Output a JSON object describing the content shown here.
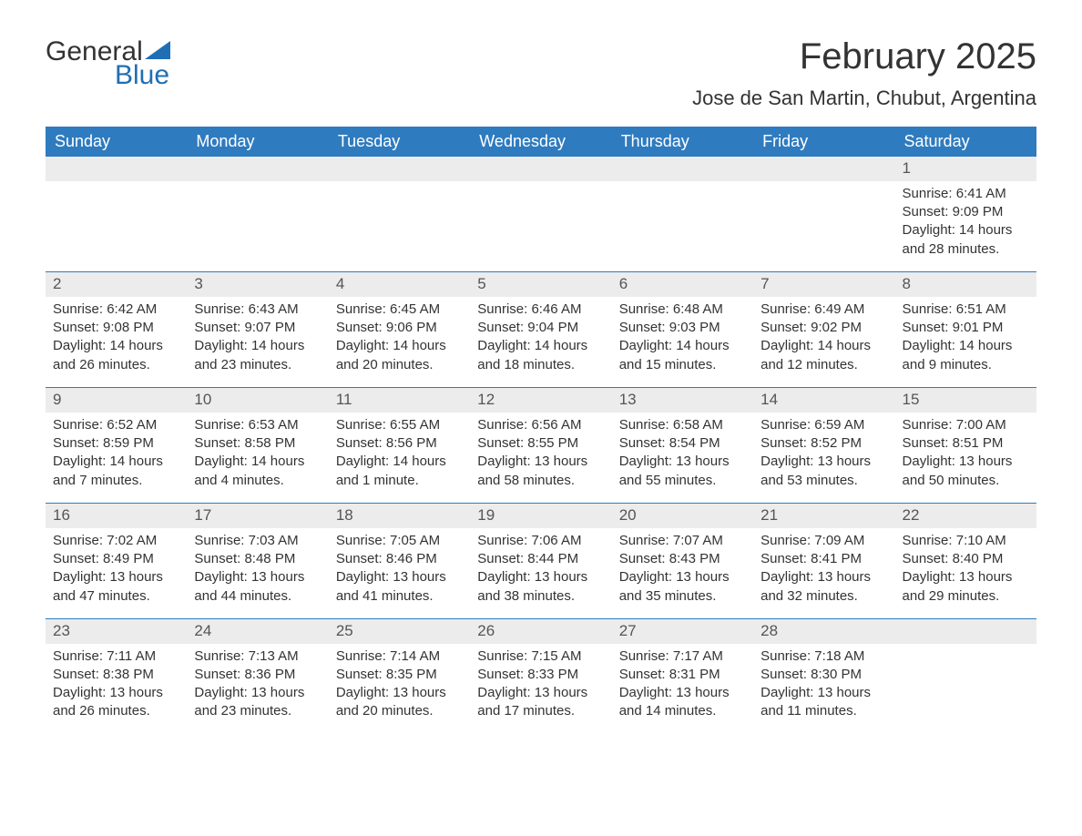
{
  "logo": {
    "word1": "General",
    "word2": "Blue",
    "accent_color": "#1f6fb5"
  },
  "header": {
    "month_title": "February 2025",
    "location": "Jose de San Martin, Chubut, Argentina"
  },
  "calendar": {
    "header_bg": "#2f7bbf",
    "header_fg": "#ffffff",
    "daynum_bg": "#ececec",
    "separator_color": "#2f7bbf",
    "text_color": "#333333",
    "columns": [
      "Sunday",
      "Monday",
      "Tuesday",
      "Wednesday",
      "Thursday",
      "Friday",
      "Saturday"
    ],
    "weeks": [
      [
        {
          "empty": true
        },
        {
          "empty": true
        },
        {
          "empty": true
        },
        {
          "empty": true
        },
        {
          "empty": true
        },
        {
          "empty": true
        },
        {
          "day": "1",
          "sunrise": "Sunrise: 6:41 AM",
          "sunset": "Sunset: 9:09 PM",
          "daylight": "Daylight: 14 hours and 28 minutes."
        }
      ],
      [
        {
          "day": "2",
          "sunrise": "Sunrise: 6:42 AM",
          "sunset": "Sunset: 9:08 PM",
          "daylight": "Daylight: 14 hours and 26 minutes."
        },
        {
          "day": "3",
          "sunrise": "Sunrise: 6:43 AM",
          "sunset": "Sunset: 9:07 PM",
          "daylight": "Daylight: 14 hours and 23 minutes."
        },
        {
          "day": "4",
          "sunrise": "Sunrise: 6:45 AM",
          "sunset": "Sunset: 9:06 PM",
          "daylight": "Daylight: 14 hours and 20 minutes."
        },
        {
          "day": "5",
          "sunrise": "Sunrise: 6:46 AM",
          "sunset": "Sunset: 9:04 PM",
          "daylight": "Daylight: 14 hours and 18 minutes."
        },
        {
          "day": "6",
          "sunrise": "Sunrise: 6:48 AM",
          "sunset": "Sunset: 9:03 PM",
          "daylight": "Daylight: 14 hours and 15 minutes."
        },
        {
          "day": "7",
          "sunrise": "Sunrise: 6:49 AM",
          "sunset": "Sunset: 9:02 PM",
          "daylight": "Daylight: 14 hours and 12 minutes."
        },
        {
          "day": "8",
          "sunrise": "Sunrise: 6:51 AM",
          "sunset": "Sunset: 9:01 PM",
          "daylight": "Daylight: 14 hours and 9 minutes."
        }
      ],
      [
        {
          "day": "9",
          "sunrise": "Sunrise: 6:52 AM",
          "sunset": "Sunset: 8:59 PM",
          "daylight": "Daylight: 14 hours and 7 minutes."
        },
        {
          "day": "10",
          "sunrise": "Sunrise: 6:53 AM",
          "sunset": "Sunset: 8:58 PM",
          "daylight": "Daylight: 14 hours and 4 minutes."
        },
        {
          "day": "11",
          "sunrise": "Sunrise: 6:55 AM",
          "sunset": "Sunset: 8:56 PM",
          "daylight": "Daylight: 14 hours and 1 minute."
        },
        {
          "day": "12",
          "sunrise": "Sunrise: 6:56 AM",
          "sunset": "Sunset: 8:55 PM",
          "daylight": "Daylight: 13 hours and 58 minutes."
        },
        {
          "day": "13",
          "sunrise": "Sunrise: 6:58 AM",
          "sunset": "Sunset: 8:54 PM",
          "daylight": "Daylight: 13 hours and 55 minutes."
        },
        {
          "day": "14",
          "sunrise": "Sunrise: 6:59 AM",
          "sunset": "Sunset: 8:52 PM",
          "daylight": "Daylight: 13 hours and 53 minutes."
        },
        {
          "day": "15",
          "sunrise": "Sunrise: 7:00 AM",
          "sunset": "Sunset: 8:51 PM",
          "daylight": "Daylight: 13 hours and 50 minutes."
        }
      ],
      [
        {
          "day": "16",
          "sunrise": "Sunrise: 7:02 AM",
          "sunset": "Sunset: 8:49 PM",
          "daylight": "Daylight: 13 hours and 47 minutes."
        },
        {
          "day": "17",
          "sunrise": "Sunrise: 7:03 AM",
          "sunset": "Sunset: 8:48 PM",
          "daylight": "Daylight: 13 hours and 44 minutes."
        },
        {
          "day": "18",
          "sunrise": "Sunrise: 7:05 AM",
          "sunset": "Sunset: 8:46 PM",
          "daylight": "Daylight: 13 hours and 41 minutes."
        },
        {
          "day": "19",
          "sunrise": "Sunrise: 7:06 AM",
          "sunset": "Sunset: 8:44 PM",
          "daylight": "Daylight: 13 hours and 38 minutes."
        },
        {
          "day": "20",
          "sunrise": "Sunrise: 7:07 AM",
          "sunset": "Sunset: 8:43 PM",
          "daylight": "Daylight: 13 hours and 35 minutes."
        },
        {
          "day": "21",
          "sunrise": "Sunrise: 7:09 AM",
          "sunset": "Sunset: 8:41 PM",
          "daylight": "Daylight: 13 hours and 32 minutes."
        },
        {
          "day": "22",
          "sunrise": "Sunrise: 7:10 AM",
          "sunset": "Sunset: 8:40 PM",
          "daylight": "Daylight: 13 hours and 29 minutes."
        }
      ],
      [
        {
          "day": "23",
          "sunrise": "Sunrise: 7:11 AM",
          "sunset": "Sunset: 8:38 PM",
          "daylight": "Daylight: 13 hours and 26 minutes."
        },
        {
          "day": "24",
          "sunrise": "Sunrise: 7:13 AM",
          "sunset": "Sunset: 8:36 PM",
          "daylight": "Daylight: 13 hours and 23 minutes."
        },
        {
          "day": "25",
          "sunrise": "Sunrise: 7:14 AM",
          "sunset": "Sunset: 8:35 PM",
          "daylight": "Daylight: 13 hours and 20 minutes."
        },
        {
          "day": "26",
          "sunrise": "Sunrise: 7:15 AM",
          "sunset": "Sunset: 8:33 PM",
          "daylight": "Daylight: 13 hours and 17 minutes."
        },
        {
          "day": "27",
          "sunrise": "Sunrise: 7:17 AM",
          "sunset": "Sunset: 8:31 PM",
          "daylight": "Daylight: 13 hours and 14 minutes."
        },
        {
          "day": "28",
          "sunrise": "Sunrise: 7:18 AM",
          "sunset": "Sunset: 8:30 PM",
          "daylight": "Daylight: 13 hours and 11 minutes."
        },
        {
          "empty": true
        }
      ]
    ]
  }
}
